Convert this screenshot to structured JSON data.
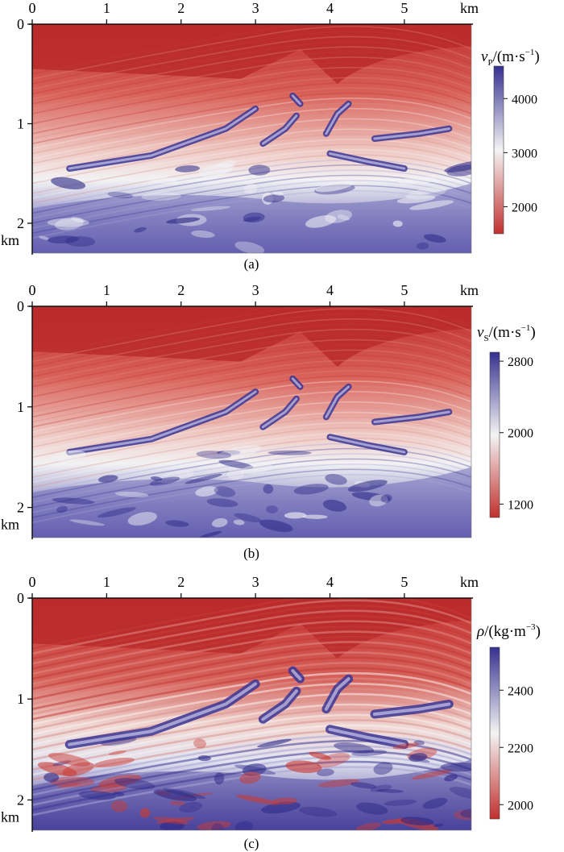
{
  "chart_data": [
    {
      "type": "heatmap",
      "caption": "(a)",
      "x_ticks": [
        "0",
        "1",
        "2",
        "3",
        "4",
        "5"
      ],
      "x_unit": "km",
      "xlim": [
        0,
        5.9
      ],
      "y_ticks": [
        "0",
        "1",
        "2"
      ],
      "y_unit": "km",
      "ylim": [
        0,
        2.3
      ],
      "colorbar": {
        "symbol": "v",
        "subscript": "P",
        "unit": "/(m·s",
        "exponent": "−1",
        "close": ")",
        "ticks": [
          2000,
          3000,
          4000
        ],
        "range": [
          1500,
          4600
        ],
        "colors": [
          "#c0302e",
          "#f4f4f4",
          "#36308f"
        ]
      }
    },
    {
      "type": "heatmap",
      "caption": "(b)",
      "x_ticks": [
        "0",
        "1",
        "2",
        "3",
        "4",
        "5"
      ],
      "x_unit": "km",
      "xlim": [
        0,
        5.9
      ],
      "y_ticks": [
        "0",
        "1",
        "2"
      ],
      "y_unit": "km",
      "ylim": [
        0,
        2.3
      ],
      "colorbar": {
        "symbol": "v",
        "subscript": "S",
        "unit": "/(m·s",
        "exponent": "−1",
        "close": ")",
        "ticks": [
          1200,
          2000,
          2800
        ],
        "range": [
          1050,
          2900
        ],
        "colors": [
          "#c0302e",
          "#f4f4f4",
          "#36308f"
        ]
      }
    },
    {
      "type": "heatmap",
      "caption": "(c)",
      "x_ticks": [
        "0",
        "1",
        "2",
        "3",
        "4",
        "5"
      ],
      "x_unit": "km",
      "xlim": [
        0,
        5.9
      ],
      "y_ticks": [
        "0",
        "1",
        "2"
      ],
      "y_unit": "km",
      "ylim": [
        0,
        2.3
      ],
      "colorbar": {
        "symbol": "ρ",
        "subscript": "",
        "unit": "/(kg·m",
        "exponent": "−3",
        "close": ")",
        "ticks": [
          2000,
          2200,
          2400
        ],
        "range": [
          1950,
          2550
        ],
        "colors": [
          "#c0302e",
          "#f4f4f4",
          "#36308f"
        ]
      }
    }
  ]
}
